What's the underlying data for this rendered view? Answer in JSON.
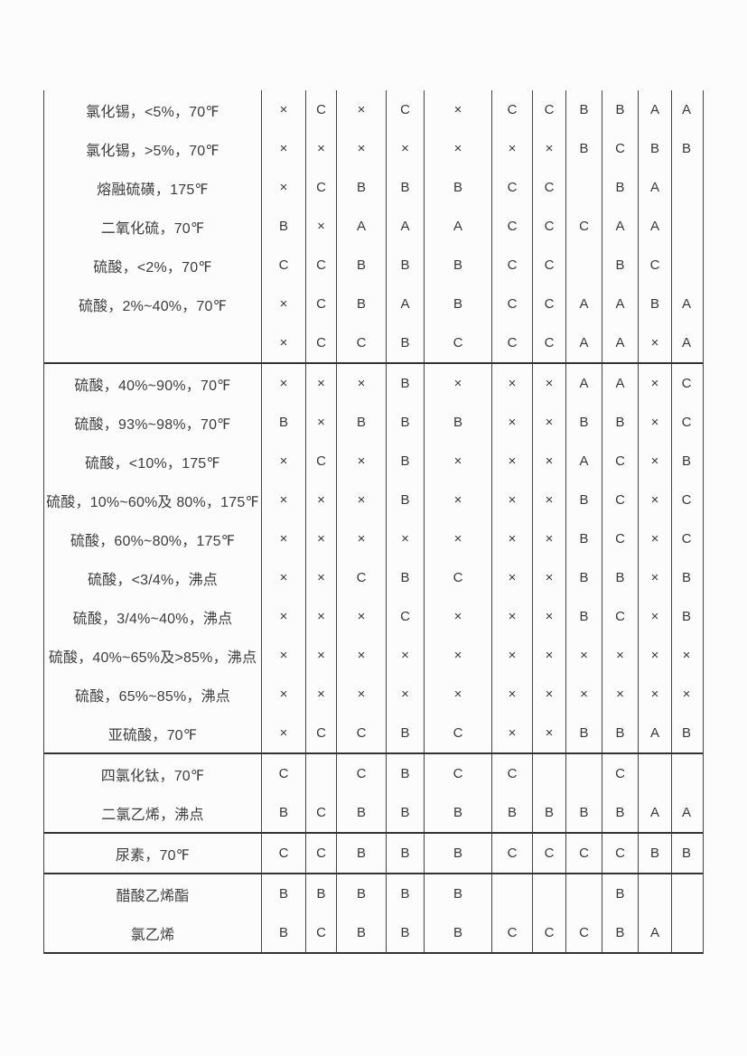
{
  "page": {
    "background_color": "#fcfcfc",
    "text_color": "#3d3d3d",
    "border_color": "#444444"
  },
  "table": {
    "description_note": "continuation table fragment: left column lists chemical media, 11 rating columns with values A / B / C / ×",
    "rating_columns_count": 11,
    "groups": [
      {
        "rows": [
          {
            "label": "氯化锡，<5%，70℉",
            "values": [
              "×",
              "C",
              "×",
              "C",
              "×",
              "C",
              "C",
              "B",
              "B",
              "A",
              "A"
            ]
          },
          {
            "label": "氯化锡，>5%，70℉",
            "values": [
              "×",
              "×",
              "×",
              "×",
              "×",
              "×",
              "×",
              "B",
              "C",
              "B",
              "B"
            ]
          },
          {
            "label": "熔融硫磺，175℉",
            "values": [
              "×",
              "C",
              "B",
              "B",
              "B",
              "C",
              "C",
              "",
              "B",
              "A",
              ""
            ]
          },
          {
            "label": "二氧化硫，70℉",
            "values": [
              "B",
              "×",
              "A",
              "A",
              "A",
              "C",
              "C",
              "C",
              "A",
              "A",
              ""
            ]
          },
          {
            "label": "硫酸，<2%，70℉",
            "values": [
              "C",
              "C",
              "B",
              "B",
              "B",
              "C",
              "C",
              "",
              "B",
              "C",
              ""
            ]
          },
          {
            "label": "硫酸，2%~40%，70℉",
            "values": [
              "×",
              "C",
              "B",
              "A",
              "B",
              "C",
              "C",
              "A",
              "A",
              "B",
              "A"
            ]
          },
          {
            "label": "",
            "values": [
              "×",
              "C",
              "C",
              "B",
              "C",
              "C",
              "C",
              "A",
              "A",
              "×",
              "A"
            ]
          }
        ]
      },
      {
        "rows": [
          {
            "label": "硫酸，40%~90%，70℉",
            "values": [
              "×",
              "×",
              "×",
              "B",
              "×",
              "×",
              "×",
              "A",
              "A",
              "×",
              "C"
            ]
          },
          {
            "label": "硫酸，93%~98%，70℉",
            "values": [
              "B",
              "×",
              "B",
              "B",
              "B",
              "×",
              "×",
              "B",
              "B",
              "×",
              "C"
            ]
          },
          {
            "label": "硫酸，<10%，175℉",
            "values": [
              "×",
              "C",
              "×",
              "B",
              "×",
              "×",
              "×",
              "A",
              "C",
              "×",
              "B"
            ]
          },
          {
            "label": "硫酸，10%~60%及 80%，175℉",
            "values": [
              "×",
              "×",
              "×",
              "B",
              "×",
              "×",
              "×",
              "B",
              "C",
              "×",
              "C"
            ]
          },
          {
            "label": "硫酸，60%~80%，175℉",
            "values": [
              "×",
              "×",
              "×",
              "×",
              "×",
              "×",
              "×",
              "B",
              "C",
              "×",
              "C"
            ]
          },
          {
            "label": "硫酸，<3/4%，沸点",
            "values": [
              "×",
              "×",
              "C",
              "B",
              "C",
              "×",
              "×",
              "B",
              "B",
              "×",
              "B"
            ]
          },
          {
            "label": "硫酸，3/4%~40%，沸点",
            "values": [
              "×",
              "×",
              "×",
              "C",
              "×",
              "×",
              "×",
              "B",
              "C",
              "×",
              "B"
            ]
          },
          {
            "label": "硫酸，40%~65%及>85%，沸点",
            "values": [
              "×",
              "×",
              "×",
              "×",
              "×",
              "×",
              "×",
              "×",
              "×",
              "×",
              "×"
            ]
          },
          {
            "label": "硫酸，65%~85%，沸点",
            "values": [
              "×",
              "×",
              "×",
              "×",
              "×",
              "×",
              "×",
              "×",
              "×",
              "×",
              "×"
            ]
          },
          {
            "label": "亚硫酸，70℉",
            "values": [
              "×",
              "C",
              "C",
              "B",
              "C",
              "×",
              "×",
              "B",
              "B",
              "A",
              "B"
            ]
          }
        ]
      },
      {
        "rows": [
          {
            "label": "四氯化钛，70℉",
            "values": [
              "C",
              "",
              "C",
              "B",
              "C",
              "C",
              "",
              "",
              "C",
              "",
              ""
            ]
          },
          {
            "label": "二氯乙烯，沸点",
            "values": [
              "B",
              "C",
              "B",
              "B",
              "B",
              "B",
              "B",
              "B",
              "B",
              "A",
              "A"
            ]
          }
        ]
      },
      {
        "rows": [
          {
            "label": "尿素，70℉",
            "values": [
              "C",
              "C",
              "B",
              "B",
              "B",
              "C",
              "C",
              "C",
              "C",
              "B",
              "B"
            ]
          }
        ]
      },
      {
        "rows": [
          {
            "label": "醋酸乙烯酯",
            "values": [
              "B",
              "B",
              "B",
              "B",
              "B",
              "",
              "",
              "",
              "B",
              "",
              ""
            ]
          },
          {
            "label": "氯乙烯",
            "values": [
              "B",
              "C",
              "B",
              "B",
              "B",
              "C",
              "C",
              "C",
              "B",
              "A",
              ""
            ]
          }
        ]
      }
    ]
  }
}
